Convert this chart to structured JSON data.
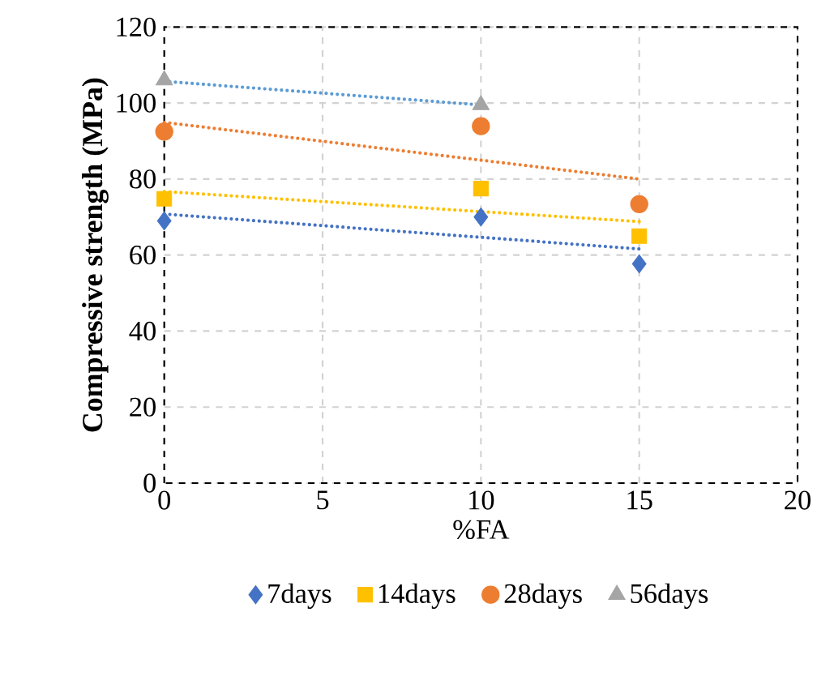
{
  "chart_data": {
    "type": "scatter",
    "xlabel": "%FA",
    "ylabel": "Compressive strength (MPa)",
    "xlim": [
      0,
      20
    ],
    "ylim": [
      0,
      120
    ],
    "xticks": [
      0,
      5,
      10,
      15,
      20
    ],
    "yticks": [
      0,
      20,
      40,
      60,
      80,
      100,
      120
    ],
    "grid": true,
    "legend": "bottom",
    "x": [
      0,
      10,
      15
    ],
    "series": [
      {
        "name": "7days",
        "color": "#4472c4",
        "marker": "diamond",
        "values": [
          69.0,
          70.0,
          57.7
        ]
      },
      {
        "name": "14days",
        "color": "#ffc000",
        "marker": "square",
        "values": [
          74.8,
          77.5,
          65.0
        ]
      },
      {
        "name": "28days",
        "color": "#ed7d31",
        "marker": "circle",
        "values": [
          92.5,
          93.9,
          73.4
        ]
      },
      {
        "name": "56days",
        "color": "#a5a5a5",
        "marker": "triangle",
        "x": [
          0,
          10
        ],
        "values": [
          106,
          99.5
        ]
      },
      {
        "type": "line",
        "color": "#4472c4",
        "line_style": "dotted",
        "marker": "none",
        "x": [
          0,
          15
        ],
        "values": [
          70.8,
          61.6
        ]
      },
      {
        "type": "line",
        "color": "#ffc000",
        "line_style": "dotted",
        "marker": "none",
        "x": [
          0,
          15
        ],
        "values": [
          76.7,
          68.8
        ]
      },
      {
        "type": "line",
        "color": "#ed7d31",
        "line_style": "dotted",
        "marker": "none",
        "x": [
          0,
          15
        ],
        "values": [
          94.9,
          80.0
        ]
      },
      {
        "type": "line",
        "color": "#5b9bd5",
        "line_style": "dotted",
        "marker": "none",
        "x": [
          0,
          10
        ],
        "values": [
          105.7,
          99.5
        ]
      }
    ]
  }
}
